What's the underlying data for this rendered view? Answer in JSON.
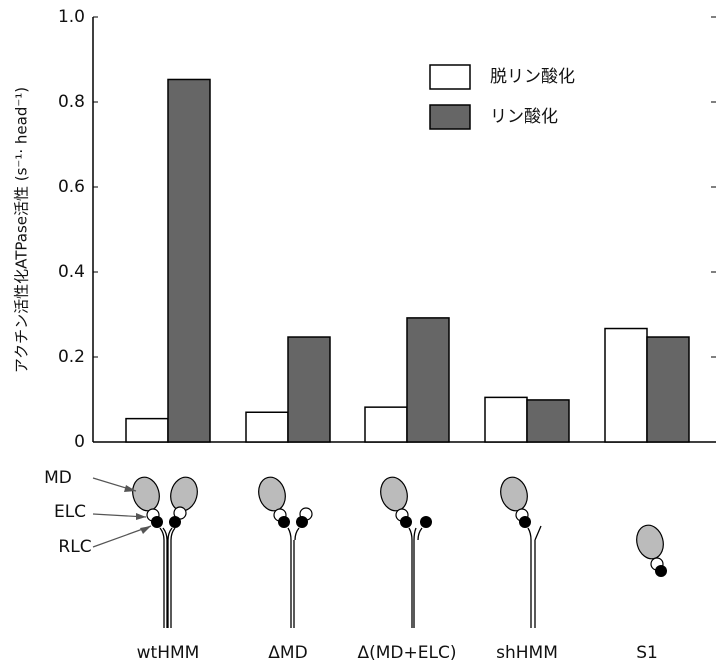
{
  "chart_data": {
    "type": "bar",
    "y_label": "アクチン活性化ATPase活性 (s⁻¹· head⁻¹)",
    "categories": [
      "wtHMM",
      "ΔMD",
      "Δ(MD+ELC)",
      "shHMM",
      "S1"
    ],
    "series": [
      {
        "name": "脱リン酸化",
        "color": "#ffffff",
        "values": [
          0.055,
          0.07,
          0.082,
          0.105,
          0.267
        ]
      },
      {
        "name": "リン酸化",
        "color": "#666666",
        "values": [
          0.853,
          0.247,
          0.292,
          0.099,
          0.247
        ]
      }
    ],
    "ylim": [
      0,
      1
    ],
    "yticks": [
      0,
      0.2,
      0.4,
      0.6,
      0.8,
      {
        "value": 1,
        "label": "1.0"
      }
    ],
    "legend": "upper-right"
  },
  "diagram": {
    "labels": [
      "MD",
      "ELC",
      "RLC"
    ]
  }
}
